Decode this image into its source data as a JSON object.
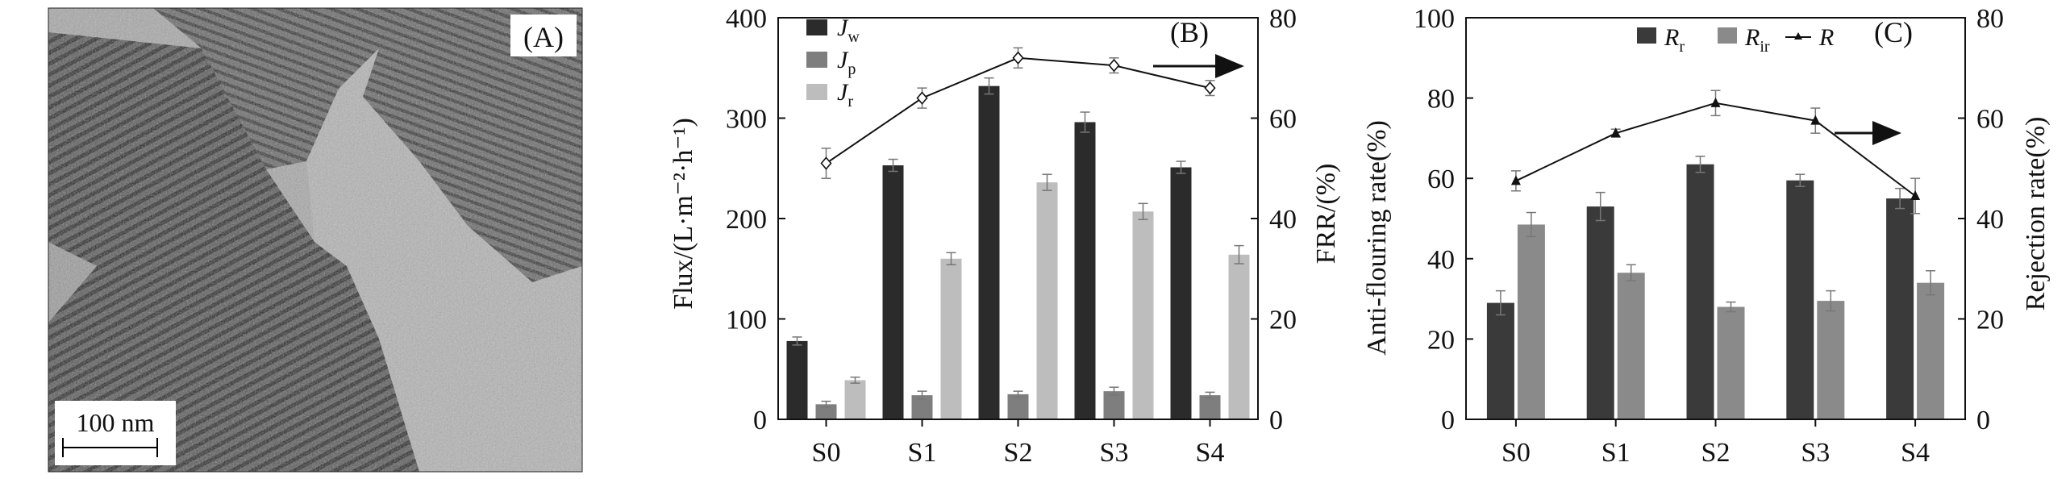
{
  "panelA": {
    "label": "(A)",
    "scalebar_label": "100 nm"
  },
  "panelB": {
    "label": "(B)",
    "left_axis_label": "Flux/(L·m⁻²·h⁻¹)",
    "right_axis_label": "FRR/(%)",
    "categories": [
      "S0",
      "S1",
      "S2",
      "S3",
      "S4"
    ],
    "legend": [
      {
        "base": "J",
        "sub": "w",
        "color": "#2b2b2b"
      },
      {
        "base": "J",
        "sub": "p",
        "color": "#7e7e7e"
      },
      {
        "base": "J",
        "sub": "r",
        "color": "#bdbdbd"
      }
    ],
    "left_ylim": [
      0,
      400
    ],
    "left_ticks": [
      0,
      100,
      200,
      300,
      400
    ],
    "right_ylim": [
      0,
      80
    ],
    "right_ticks": [
      0,
      20,
      40,
      60,
      80
    ]
  },
  "panelC": {
    "label": "(C)",
    "left_axis_label": "Anti-flouring rate(%)",
    "right_axis_label": "Rejection rate(%)",
    "categories": [
      "S0",
      "S1",
      "S2",
      "S3",
      "S4"
    ],
    "legend": [
      {
        "base": "R",
        "sub": "r",
        "color": "#3a3a3a"
      },
      {
        "base": "R",
        "sub": "ir",
        "color": "#8a8a8a"
      },
      {
        "base": "R",
        "sub": "",
        "color": "#111111"
      }
    ],
    "left_ylim": [
      0,
      100
    ],
    "left_ticks": [
      0,
      20,
      40,
      60,
      80,
      100
    ],
    "right_ylim": [
      0,
      80
    ],
    "right_ticks": [
      0,
      20,
      40,
      60,
      80
    ]
  },
  "chart_data": [
    {
      "type": "bar",
      "panel": "B",
      "title": "",
      "categories": [
        "S0",
        "S1",
        "S2",
        "S3",
        "S4"
      ],
      "ylabel": "Flux/(L·m⁻²·h⁻¹)",
      "ylim": [
        0,
        400
      ],
      "series": [
        {
          "name": "Jw",
          "values": [
            78,
            253,
            332,
            296,
            251
          ],
          "errors": [
            4,
            6,
            8,
            10,
            6
          ]
        },
        {
          "name": "Jp",
          "values": [
            15,
            24,
            25,
            28,
            24
          ],
          "errors": [
            3,
            4,
            3,
            4,
            3
          ]
        },
        {
          "name": "Jr",
          "values": [
            39,
            160,
            236,
            207,
            164
          ],
          "errors": [
            3,
            6,
            8,
            8,
            9
          ]
        }
      ]
    },
    {
      "type": "line",
      "panel": "B",
      "title": "",
      "categories": [
        "S0",
        "S1",
        "S2",
        "S3",
        "S4"
      ],
      "ylabel": "FRR/(%)",
      "ylim": [
        0,
        80
      ],
      "series": [
        {
          "name": "",
          "values": [
            51,
            64,
            72,
            70.5,
            66
          ],
          "errors": [
            3,
            2,
            2,
            1.5,
            1.5
          ]
        }
      ]
    },
    {
      "type": "bar",
      "panel": "C",
      "title": "",
      "categories": [
        "S0",
        "S1",
        "S2",
        "S3",
        "S4"
      ],
      "ylabel": "Anti-flouring rate(%)",
      "ylim": [
        0,
        100
      ],
      "series": [
        {
          "name": "Rr",
          "values": [
            29,
            53,
            63.5,
            59.5,
            55
          ],
          "errors": [
            3,
            3.5,
            2,
            1.5,
            2.5
          ]
        },
        {
          "name": "Rir",
          "values": [
            48.5,
            36.5,
            28,
            29.5,
            34
          ],
          "errors": [
            3,
            2,
            1.2,
            2.5,
            3
          ]
        }
      ]
    },
    {
      "type": "line",
      "panel": "C",
      "title": "",
      "categories": [
        "S0",
        "S1",
        "S2",
        "S3",
        "S4"
      ],
      "ylabel": "Rejection rate(%)",
      "ylim": [
        0,
        80
      ],
      "series": [
        {
          "name": "R",
          "values": [
            47.5,
            57,
            63,
            59.5,
            44.5
          ],
          "errors": [
            2,
            0.8,
            2.5,
            2.5,
            3.5
          ]
        }
      ]
    }
  ]
}
